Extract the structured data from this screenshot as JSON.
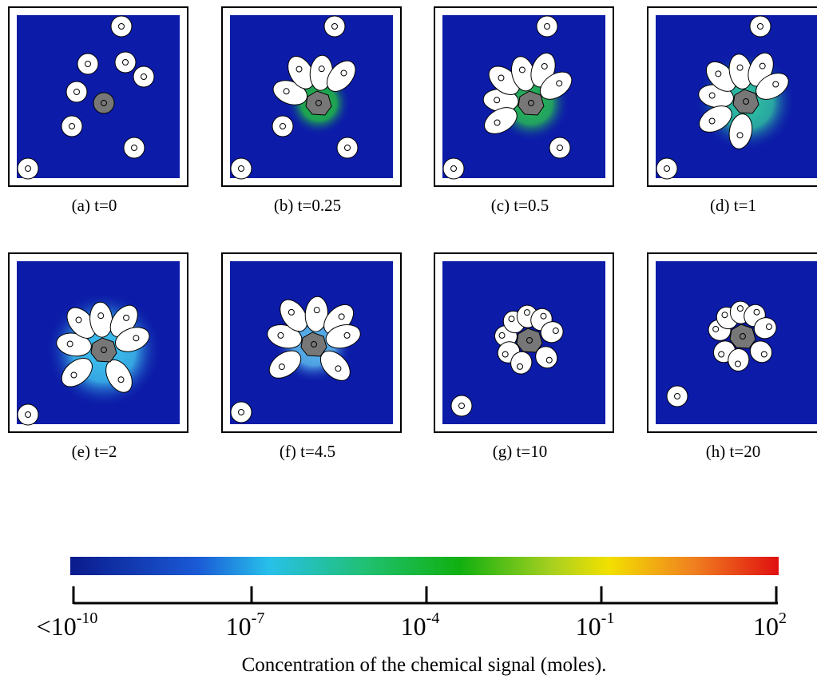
{
  "panels": [
    {
      "caption": "(a) t=0"
    },
    {
      "caption": "(b) t=0.25"
    },
    {
      "caption": "(c) t=0.5"
    },
    {
      "caption": "(d) t=1"
    },
    {
      "caption": "(e) t=2"
    },
    {
      "caption": "(f) t=4.5"
    },
    {
      "caption": "(g) t=10"
    },
    {
      "caption": "(h) t=20"
    }
  ],
  "colorbar": {
    "ticks": [
      {
        "base": "<10",
        "exponent": "-10"
      },
      {
        "base": "10",
        "exponent": "-7"
      },
      {
        "base": "10",
        "exponent": "-4"
      },
      {
        "base": "10",
        "exponent": "-1"
      },
      {
        "base": "10",
        "exponent": "2"
      }
    ],
    "label": "Concentration of the chemical signal (moles)."
  }
}
